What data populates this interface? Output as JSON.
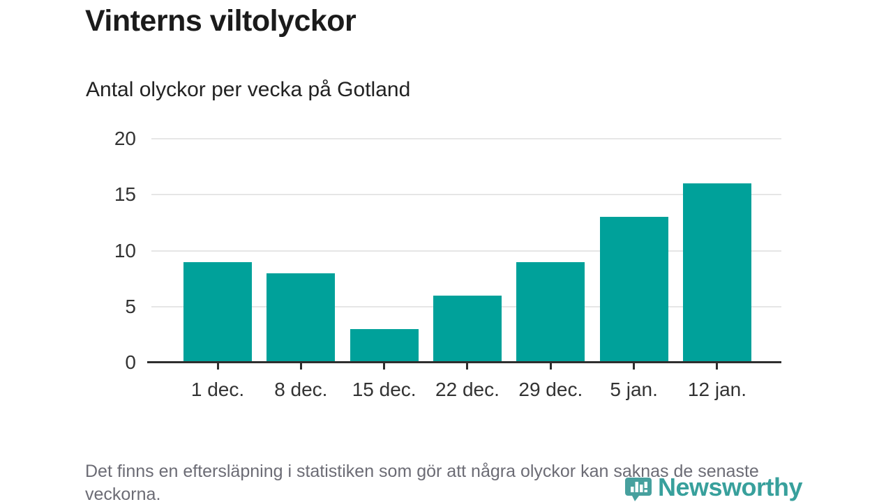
{
  "header": {
    "title": "Vinterns viltolyckor",
    "subtitle": "Antal olyckor per vecka på Gotland"
  },
  "chart_data": {
    "type": "bar",
    "title": "Vinterns viltolyckor",
    "subtitle": "Antal olyckor per vecka på Gotland",
    "categories": [
      "1 dec.",
      "8 dec.",
      "15 dec.",
      "22 dec.",
      "29 dec.",
      "5 jan.",
      "12 jan."
    ],
    "values": [
      9,
      8,
      3,
      6,
      9,
      13,
      16
    ],
    "xlabel": "",
    "ylabel": "",
    "ylim": [
      0,
      20
    ],
    "yticks": [
      0,
      5,
      10,
      15,
      20
    ],
    "grid": true,
    "legend": false,
    "bar_color": "#00a19a"
  },
  "footer": {
    "note": "Det finns en eftersläpning i statistiken som gör att några olyckor kan saknas de senaste veckorna."
  },
  "logo": {
    "text": "Newsworthy",
    "icon": "newsworthy-pin-icon",
    "text_color": "#38a09c",
    "icon_color": "#47a09e"
  },
  "colors": {
    "accent": "#00a19a",
    "axis": "#2e2e2e",
    "grid": "#e6e6e6",
    "tick_text": "#333333",
    "muted_text": "#6c6c75"
  }
}
